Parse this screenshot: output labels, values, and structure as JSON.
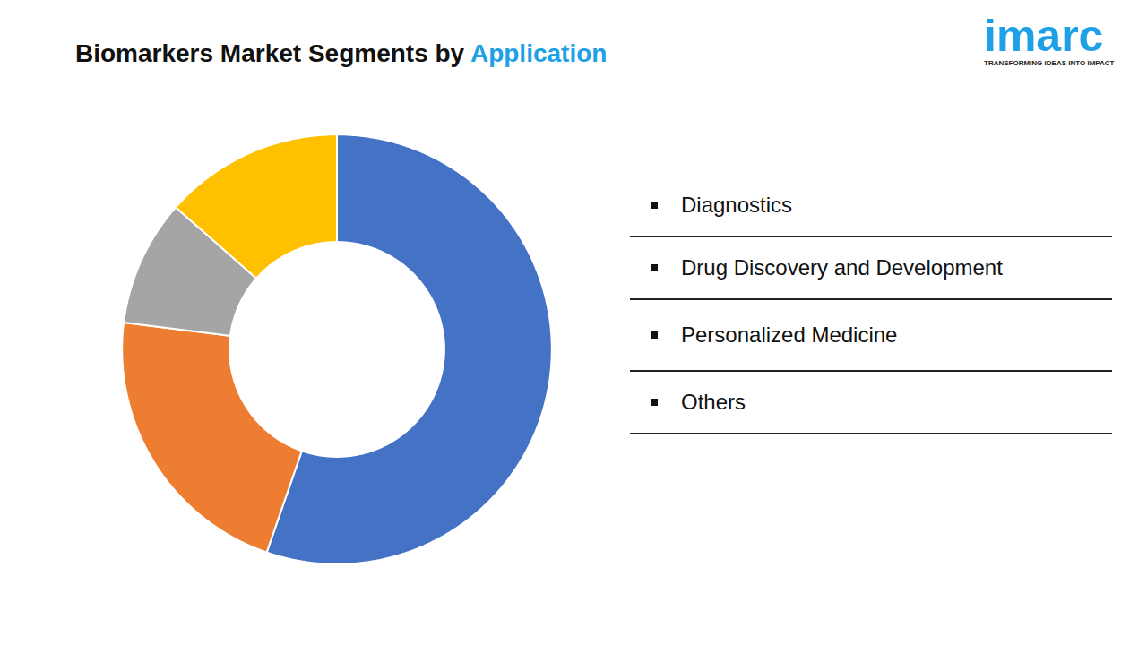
{
  "chart_data": {
    "type": "donut",
    "title": "Biomarkers Market Segments by Application",
    "categories": [
      "Diagnostics",
      "Drug Discovery and Development",
      "Personalized Medicine",
      "Others"
    ],
    "values": [
      55.3,
      21.7,
      9.5,
      13.5
    ],
    "colors": [
      "#4472c4",
      "#ed7d31",
      "#a5a5a5",
      "#ffc000"
    ],
    "legend": "right"
  },
  "logo": {
    "text": "imarc",
    "tagline": "TRANSFORMING IDEAS INTO IMPACT"
  }
}
